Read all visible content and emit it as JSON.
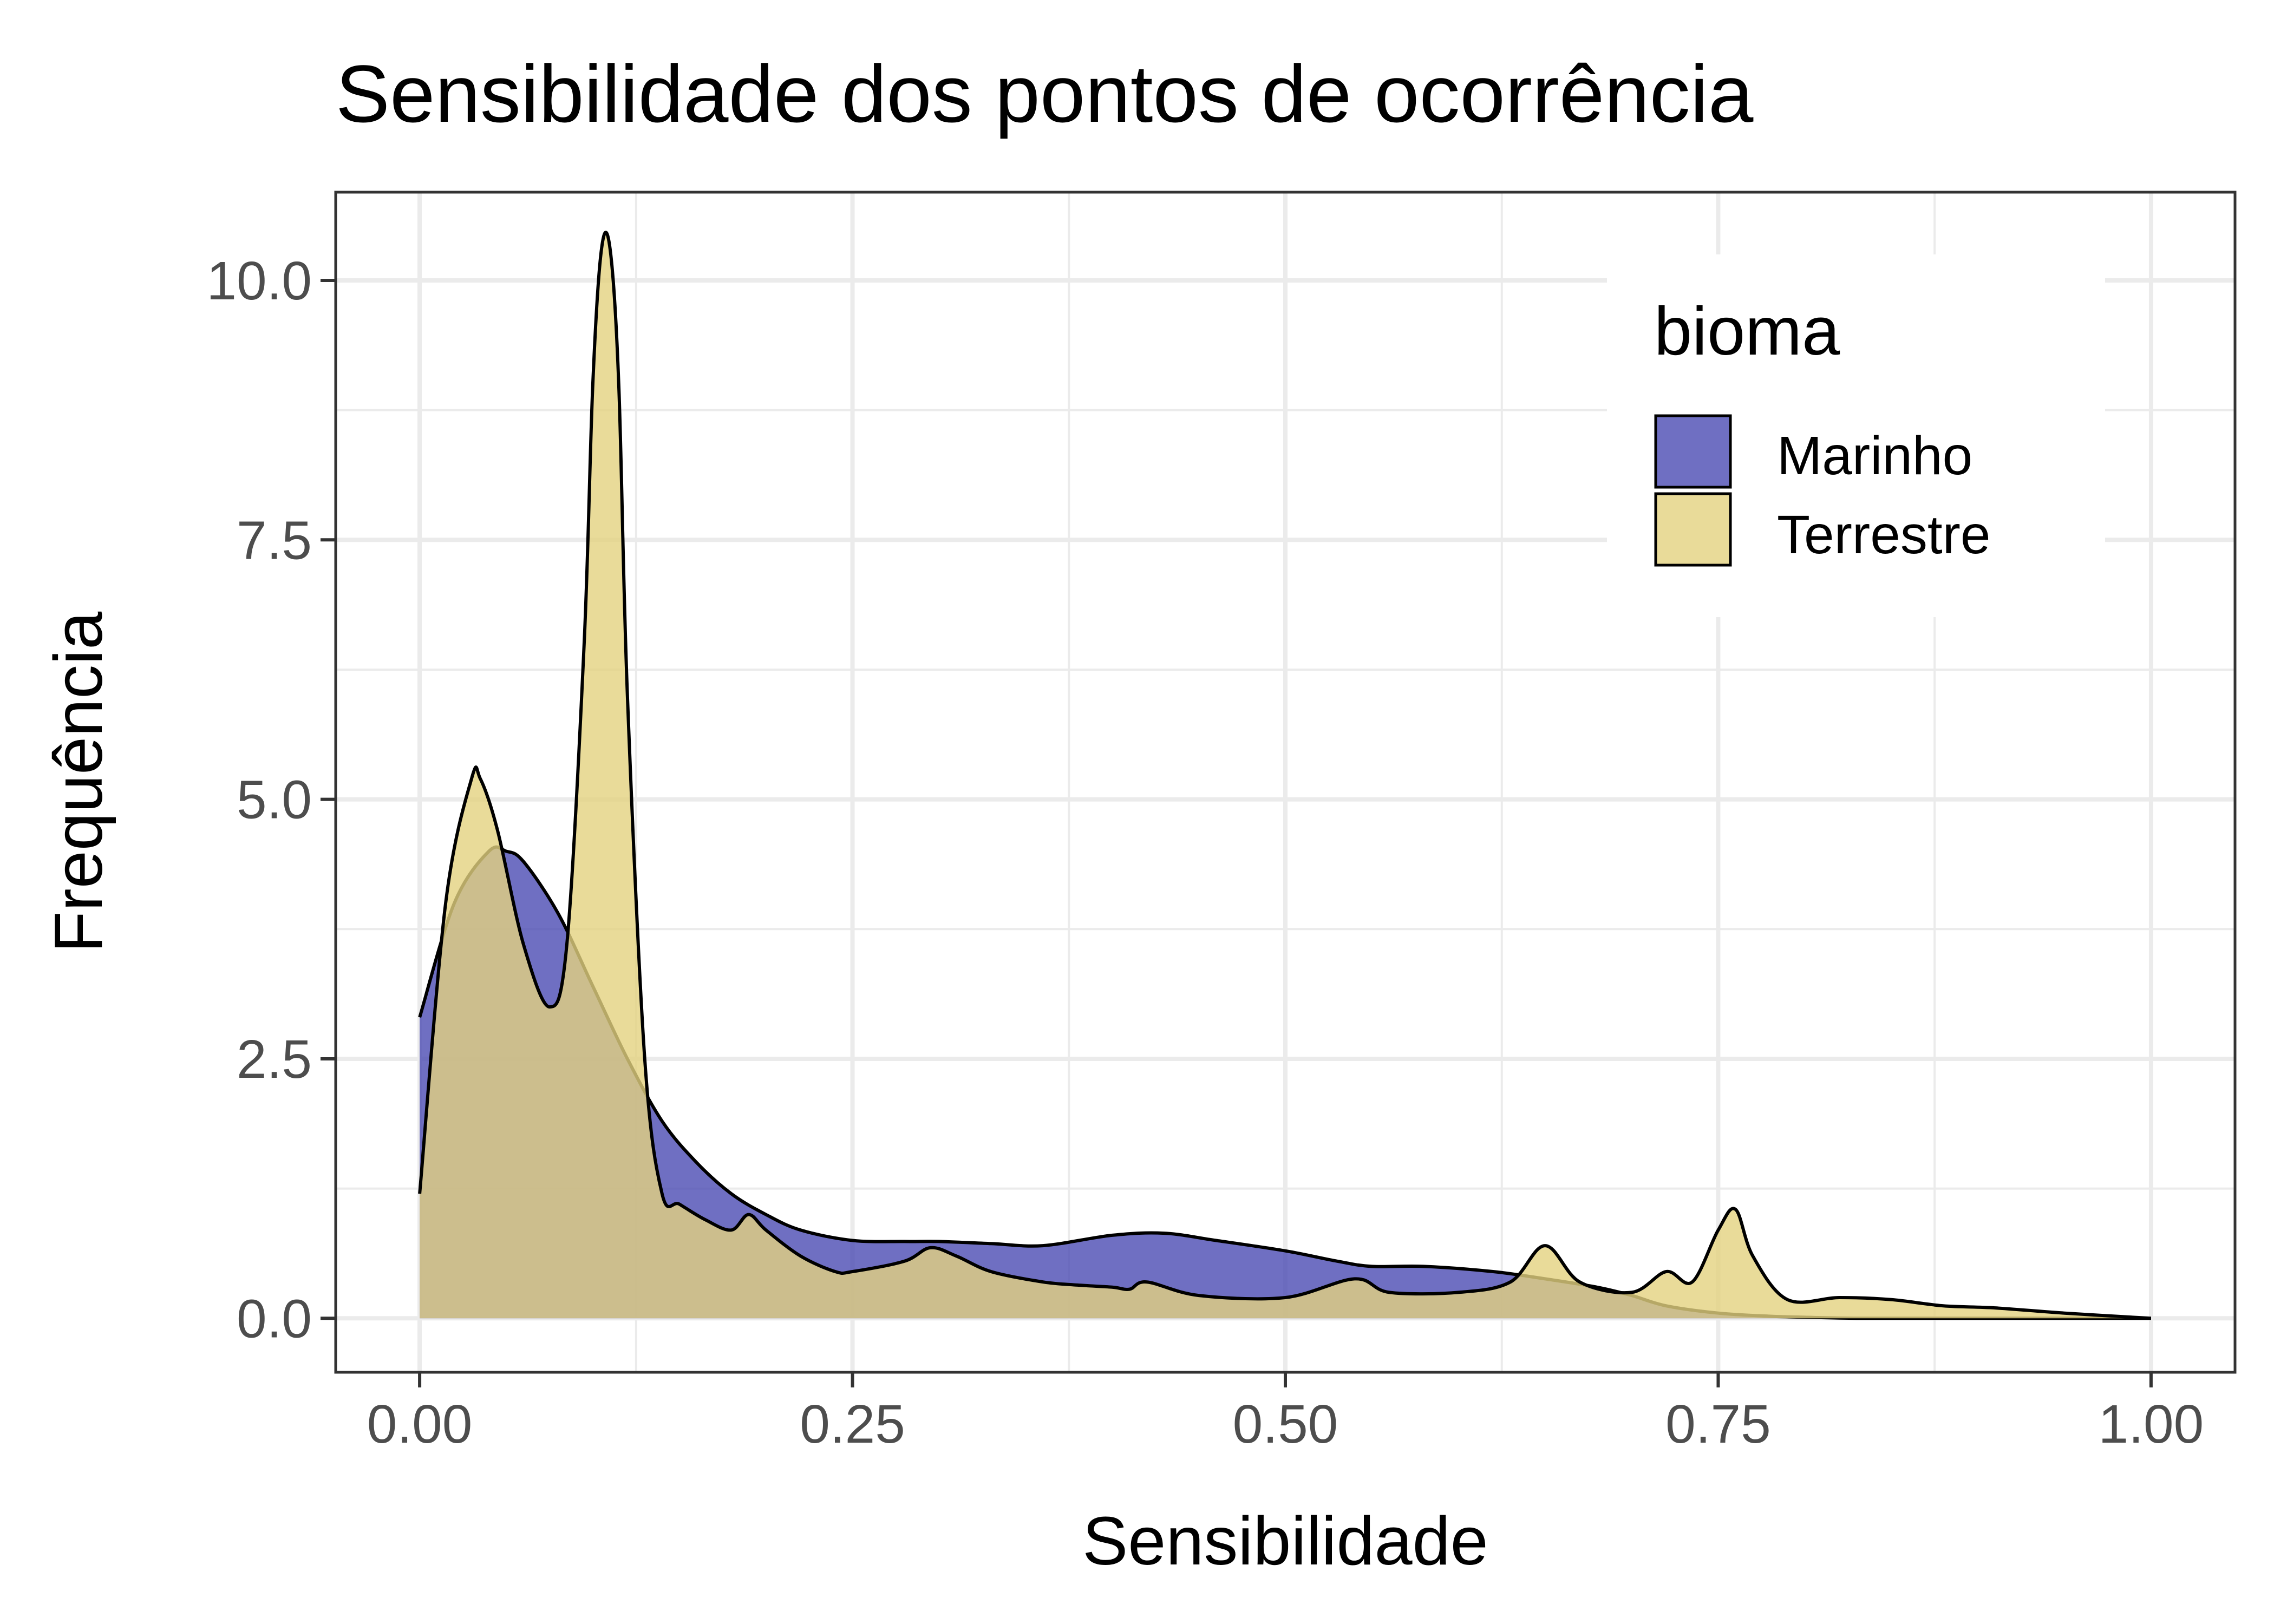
{
  "chart_data": {
    "type": "area",
    "title": "Sensibilidade dos pontos de ocorrência",
    "xlabel": "Sensibilidade",
    "ylabel": "Frequência",
    "xlim": [
      -0.0485,
      1.0485
    ],
    "ylim": [
      -0.52,
      10.85
    ],
    "x_ticks": [
      0,
      0.25,
      0.5,
      0.75,
      1.0
    ],
    "x_tick_labels": [
      "0.00",
      "0.25",
      "0.50",
      "0.75",
      "1.00"
    ],
    "y_ticks": [
      0,
      2.5,
      5.0,
      7.5,
      10.0
    ],
    "y_tick_labels": [
      "0.0",
      "2.5",
      "5.0",
      "7.5",
      "10.0"
    ],
    "grid": true,
    "legend": {
      "title": "bioma",
      "placement": "top-right inside"
    },
    "series": [
      {
        "name": "Marinho",
        "color": "#4b4bb3",
        "x": [
          0.0,
          0.02,
          0.04,
          0.05,
          0.06,
          0.08,
          0.1,
          0.12,
          0.14,
          0.16,
          0.18,
          0.2,
          0.22,
          0.25,
          0.28,
          0.3,
          0.33,
          0.36,
          0.4,
          0.43,
          0.46,
          0.5,
          0.53,
          0.55,
          0.58,
          0.62,
          0.65,
          0.68,
          0.7,
          0.72,
          0.75,
          0.78,
          0.8,
          0.83,
          0.86,
          0.9,
          0.95,
          1.0
        ],
        "y": [
          2.9,
          4.0,
          4.5,
          4.5,
          4.4,
          3.9,
          3.2,
          2.5,
          1.9,
          1.5,
          1.2,
          1.0,
          0.85,
          0.75,
          0.74,
          0.74,
          0.72,
          0.7,
          0.8,
          0.82,
          0.75,
          0.65,
          0.55,
          0.5,
          0.5,
          0.45,
          0.38,
          0.3,
          0.22,
          0.12,
          0.05,
          0.02,
          0.01,
          0.0,
          0.0,
          0.0,
          0.0,
          0.0
        ]
      },
      {
        "name": "Terrestre",
        "color": "#e3d27f",
        "x": [
          0.0,
          0.015,
          0.03,
          0.035,
          0.045,
          0.06,
          0.075,
          0.085,
          0.095,
          0.1,
          0.105,
          0.11,
          0.115,
          0.12,
          0.13,
          0.14,
          0.15,
          0.165,
          0.18,
          0.19,
          0.2,
          0.22,
          0.24,
          0.25,
          0.28,
          0.295,
          0.31,
          0.33,
          0.36,
          0.38,
          0.4,
          0.41,
          0.42,
          0.45,
          0.5,
          0.54,
          0.56,
          0.6,
          0.63,
          0.65,
          0.67,
          0.7,
          0.72,
          0.735,
          0.75,
          0.76,
          0.77,
          0.79,
          0.82,
          0.85,
          0.88,
          0.91,
          0.95,
          1.0
        ],
        "y": [
          1.2,
          4.0,
          5.2,
          5.2,
          4.7,
          3.6,
          3.0,
          3.6,
          6.5,
          9.0,
          10.3,
          10.3,
          9.0,
          6.0,
          2.5,
          1.2,
          1.1,
          0.95,
          0.85,
          1.0,
          0.85,
          0.6,
          0.45,
          0.45,
          0.55,
          0.68,
          0.6,
          0.45,
          0.35,
          0.32,
          0.3,
          0.28,
          0.35,
          0.22,
          0.2,
          0.38,
          0.25,
          0.25,
          0.35,
          0.7,
          0.35,
          0.25,
          0.45,
          0.35,
          0.85,
          1.05,
          0.6,
          0.18,
          0.2,
          0.18,
          0.12,
          0.1,
          0.05,
          0.0
        ]
      }
    ]
  }
}
